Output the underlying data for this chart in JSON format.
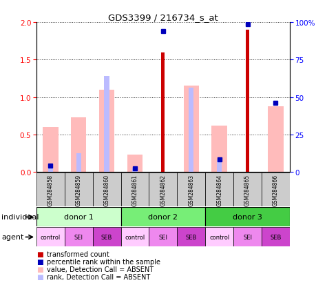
{
  "title": "GDS3399 / 216734_s_at",
  "samples": [
    "GSM284858",
    "GSM284859",
    "GSM284860",
    "GSM284861",
    "GSM284862",
    "GSM284863",
    "GSM284864",
    "GSM284865",
    "GSM284866"
  ],
  "red_bars": [
    0,
    0,
    0,
    0,
    1.6,
    0,
    0,
    1.9,
    0
  ],
  "blue_dots_left": [
    0.09,
    0,
    0,
    0.05,
    1.88,
    0,
    0.17,
    1.97,
    0.92
  ],
  "pink_bars": [
    0.6,
    0.73,
    1.1,
    0.23,
    0,
    1.15,
    0.62,
    0,
    0.88
  ],
  "lightblue_bars": [
    0.09,
    0.25,
    1.28,
    0.05,
    0,
    1.13,
    0.17,
    0,
    0
  ],
  "donors": [
    {
      "label": "donor 1",
      "start": 0,
      "end": 3
    },
    {
      "label": "donor 2",
      "start": 3,
      "end": 6
    },
    {
      "label": "donor 3",
      "start": 6,
      "end": 9
    }
  ],
  "donor_colors": [
    "#ccffcc",
    "#77ee77",
    "#44cc44"
  ],
  "agents": [
    "control",
    "SEI",
    "SEB",
    "control",
    "SEI",
    "SEB",
    "control",
    "SEI",
    "SEB"
  ],
  "agent_colors": [
    "#ffccff",
    "#ee88ee",
    "#cc44cc",
    "#ffccff",
    "#ee88ee",
    "#cc44cc",
    "#ffccff",
    "#ee88ee",
    "#cc44cc"
  ],
  "ylim_left": [
    0,
    2
  ],
  "ylim_right": [
    0,
    100
  ],
  "yticks_left": [
    0,
    0.5,
    1.0,
    1.5,
    2.0
  ],
  "yticks_right": [
    0,
    25,
    50,
    75,
    100
  ],
  "yticklabels_right": [
    "0",
    "25",
    "50",
    "75",
    "100%"
  ],
  "red_color": "#cc0000",
  "blue_color": "#0000bb",
  "pink_color": "#ffbbbb",
  "lightblue_color": "#bbbbff",
  "gray_sample_color": "#cccccc",
  "legend_items": [
    {
      "color": "#cc0000",
      "label": "transformed count"
    },
    {
      "color": "#0000bb",
      "label": "percentile rank within the sample"
    },
    {
      "color": "#ffbbbb",
      "label": "value, Detection Call = ABSENT"
    },
    {
      "color": "#bbbbff",
      "label": "rank, Detection Call = ABSENT"
    }
  ]
}
